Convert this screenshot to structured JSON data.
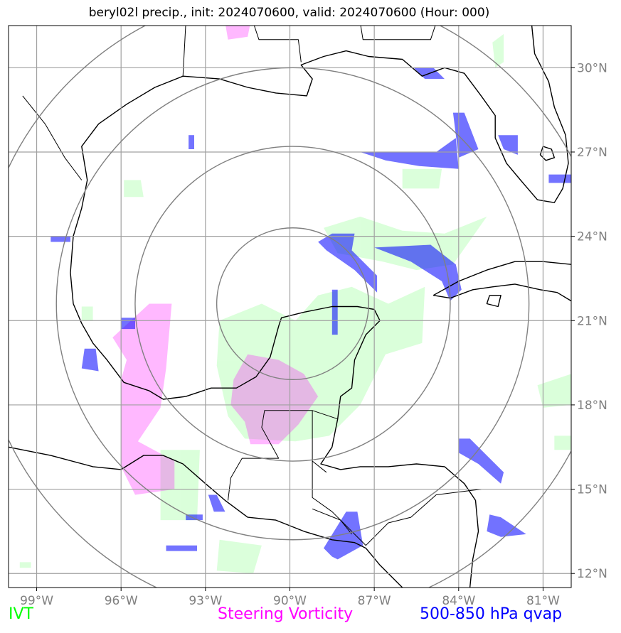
{
  "title": "beryl02l precip., init: 2024070600, valid: 2024070600 (Hour: 000)",
  "map": {
    "lon_range": [
      -100,
      -80
    ],
    "lat_range": [
      11.5,
      31.5
    ],
    "lon_ticks": [
      {
        "value": -99,
        "label": "99°W"
      },
      {
        "value": -96,
        "label": "96°W"
      },
      {
        "value": -93,
        "label": "93°W"
      },
      {
        "value": -90,
        "label": "90°W"
      },
      {
        "value": -87,
        "label": "87°W"
      },
      {
        "value": -84,
        "label": "84°W"
      },
      {
        "value": -81,
        "label": "81°W"
      }
    ],
    "lat_ticks": [
      {
        "value": 12,
        "label": "12°N"
      },
      {
        "value": 15,
        "label": "15°N"
      },
      {
        "value": 18,
        "label": "18°N"
      },
      {
        "value": 21,
        "label": "21°N"
      },
      {
        "value": 24,
        "label": "24°N"
      },
      {
        "value": 27,
        "label": "27°N"
      },
      {
        "value": 30,
        "label": "30°N"
      }
    ],
    "range_ring_center": {
      "lon": -89.9,
      "lat": 21.6
    },
    "range_ring_radii_deg": [
      2.7,
      5.6,
      8.4,
      11.2
    ],
    "colors": {
      "ivt": "#00ff00",
      "vorticity": "#ff00ff",
      "qvap": "#0000ff",
      "grid": "#a0a0a0",
      "rings": "#808080",
      "coast": "#000000"
    }
  },
  "legend": {
    "ivt": "IVT",
    "vorticity": "Steering Vorticity",
    "qvap": "500-850 hPa qvap"
  }
}
